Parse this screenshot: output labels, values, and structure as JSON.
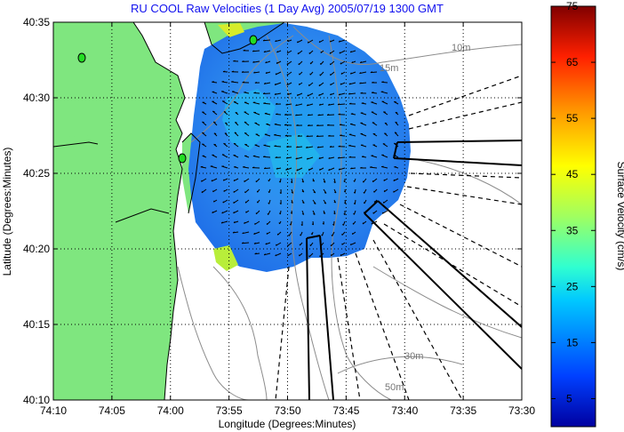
{
  "chart_data": {
    "type": "heatmap",
    "title": "RU COOL Raw Velocities (1 Day Avg) 2005/07/19 1300 GMT",
    "xlabel": "Longitude (Degrees:Minutes)",
    "ylabel": "Latitude (Degrees:Minutes)",
    "colorbar_label": "Surface Velocity (cm/s)",
    "x_ticks": [
      "74:10",
      "74:05",
      "74:00",
      "73:55",
      "73:50",
      "73:45",
      "73:40",
      "73:35",
      "73:30"
    ],
    "y_ticks": [
      "40:35",
      "40:30",
      "40:25",
      "40:20",
      "40:15",
      "40:10"
    ],
    "xlim_deg_west": [
      74.1667,
      73.5
    ],
    "ylim_deg_north": [
      40.1667,
      40.5833
    ],
    "colorbar_ticks": [
      "75",
      "65",
      "55",
      "45",
      "35",
      "25",
      "15",
      "5"
    ],
    "colorbar_range": [
      0,
      75
    ],
    "grid": true,
    "contour_labels": [
      "15m",
      "10m",
      "30m",
      "50m"
    ],
    "velocity_field": {
      "center": [
        73.86,
        40.44
      ],
      "radius_deg_lat": 0.13,
      "typical_speed_cm_s": 12,
      "peak_speed_cm_s": 28,
      "arrow_grid_step_deg": 0.0167
    },
    "colors": {
      "land": "#7fe67f",
      "grid": "#000000",
      "contours": "#8c8c8c",
      "title": "#1010ee",
      "radar_sites": "#22dd22"
    }
  }
}
